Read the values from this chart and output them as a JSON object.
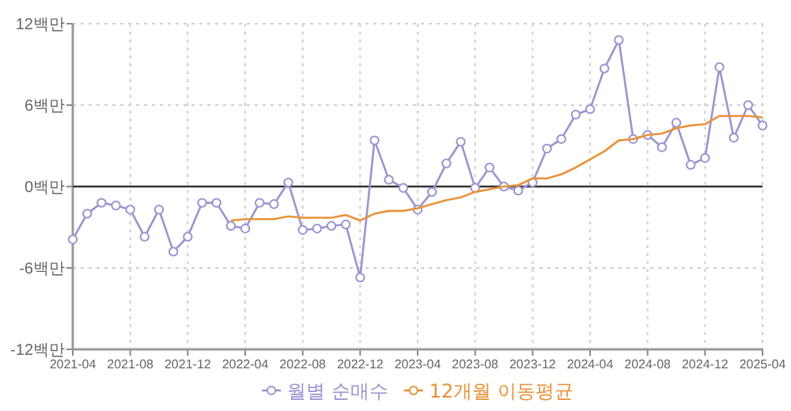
{
  "chart_data": {
    "type": "line",
    "x": [
      "2021-04",
      "2021-05",
      "2021-06",
      "2021-07",
      "2021-08",
      "2021-09",
      "2021-10",
      "2021-11",
      "2021-12",
      "2022-01",
      "2022-02",
      "2022-03",
      "2022-04",
      "2022-05",
      "2022-06",
      "2022-07",
      "2022-08",
      "2022-09",
      "2022-10",
      "2022-11",
      "2022-12",
      "2023-01",
      "2023-02",
      "2023-03",
      "2023-04",
      "2023-05",
      "2023-06",
      "2023-07",
      "2023-08",
      "2023-09",
      "2023-10",
      "2023-11",
      "2023-12",
      "2024-01",
      "2024-02",
      "2024-03",
      "2024-04",
      "2024-05",
      "2024-06",
      "2024-07",
      "2024-08",
      "2024-09",
      "2024-10",
      "2024-11",
      "2024-12",
      "2025-01",
      "2025-02",
      "2025-03",
      "2025-04"
    ],
    "series": [
      {
        "name": "월별 순매수",
        "color": "#9b93d0",
        "marker": "circle",
        "values": [
          -3.9,
          -2.0,
          -1.2,
          -1.4,
          -1.7,
          -3.7,
          -1.7,
          -4.8,
          -3.7,
          -1.2,
          -1.2,
          -2.9,
          -3.1,
          -1.2,
          -1.3,
          0.3,
          -3.2,
          -3.1,
          -2.9,
          -2.8,
          -6.7,
          3.4,
          0.5,
          -0.1,
          -1.7,
          -0.4,
          1.7,
          3.3,
          -0.1,
          1.4,
          0,
          -0.3,
          0.3,
          2.8,
          3.5,
          5.3,
          5.7,
          8.7,
          10.8,
          3.5,
          3.8,
          2.9,
          4.7,
          1.6,
          2.1,
          8.8,
          3.6,
          6.0,
          4.5
        ]
      },
      {
        "name": "12개월 이동평균",
        "color": "#e8923a",
        "marker": "none",
        "x": [
          "2022-03",
          "2022-04",
          "2022-05",
          "2022-06",
          "2022-07",
          "2022-08",
          "2022-09",
          "2022-10",
          "2022-11",
          "2022-12",
          "2023-01",
          "2023-02",
          "2023-03",
          "2023-04",
          "2023-05",
          "2023-06",
          "2023-07",
          "2023-08",
          "2023-09",
          "2023-10",
          "2023-11",
          "2023-12",
          "2024-01",
          "2024-02",
          "2024-03",
          "2024-04",
          "2024-05",
          "2024-06",
          "2024-07",
          "2024-08",
          "2024-09",
          "2024-10",
          "2024-11",
          "2024-12",
          "2025-01",
          "2025-02",
          "2025-03",
          "2025-04"
        ],
        "values": [
          -2.5,
          -2.4,
          -2.4,
          -2.4,
          -2.2,
          -2.3,
          -2.3,
          -2.3,
          -2.1,
          -2.5,
          -2.0,
          -1.8,
          -1.8,
          -1.6,
          -1.3,
          -1.0,
          -0.8,
          -0.4,
          -0.2,
          0,
          0.1,
          0.6,
          0.6,
          0.9,
          1.4,
          2.0,
          2.6,
          3.4,
          3.5,
          3.8,
          3.9,
          4.3,
          4.5,
          4.6,
          5.2,
          5.2,
          5.2,
          5.1
        ]
      }
    ],
    "xlim": [
      "2021-04",
      "2025-04"
    ],
    "xticks": [
      "2021-04",
      "2021-08",
      "2021-12",
      "2022-04",
      "2022-08",
      "2022-12",
      "2023-04",
      "2023-08",
      "2023-12",
      "2024-04",
      "2024-08",
      "2024-12",
      "2025-04"
    ],
    "ylim": [
      -12,
      12
    ],
    "yticks": [
      {
        "value": -12,
        "label": "-12백만"
      },
      {
        "value": -6,
        "label": "-6백만"
      },
      {
        "value": 0,
        "label": "0백만"
      },
      {
        "value": 6,
        "label": "6백만"
      },
      {
        "value": 12,
        "label": "12백만"
      }
    ],
    "ref_lines": [
      {
        "axis": "y",
        "value": 0,
        "color": "#333333"
      }
    ],
    "grid": true,
    "legend": "bottom"
  }
}
